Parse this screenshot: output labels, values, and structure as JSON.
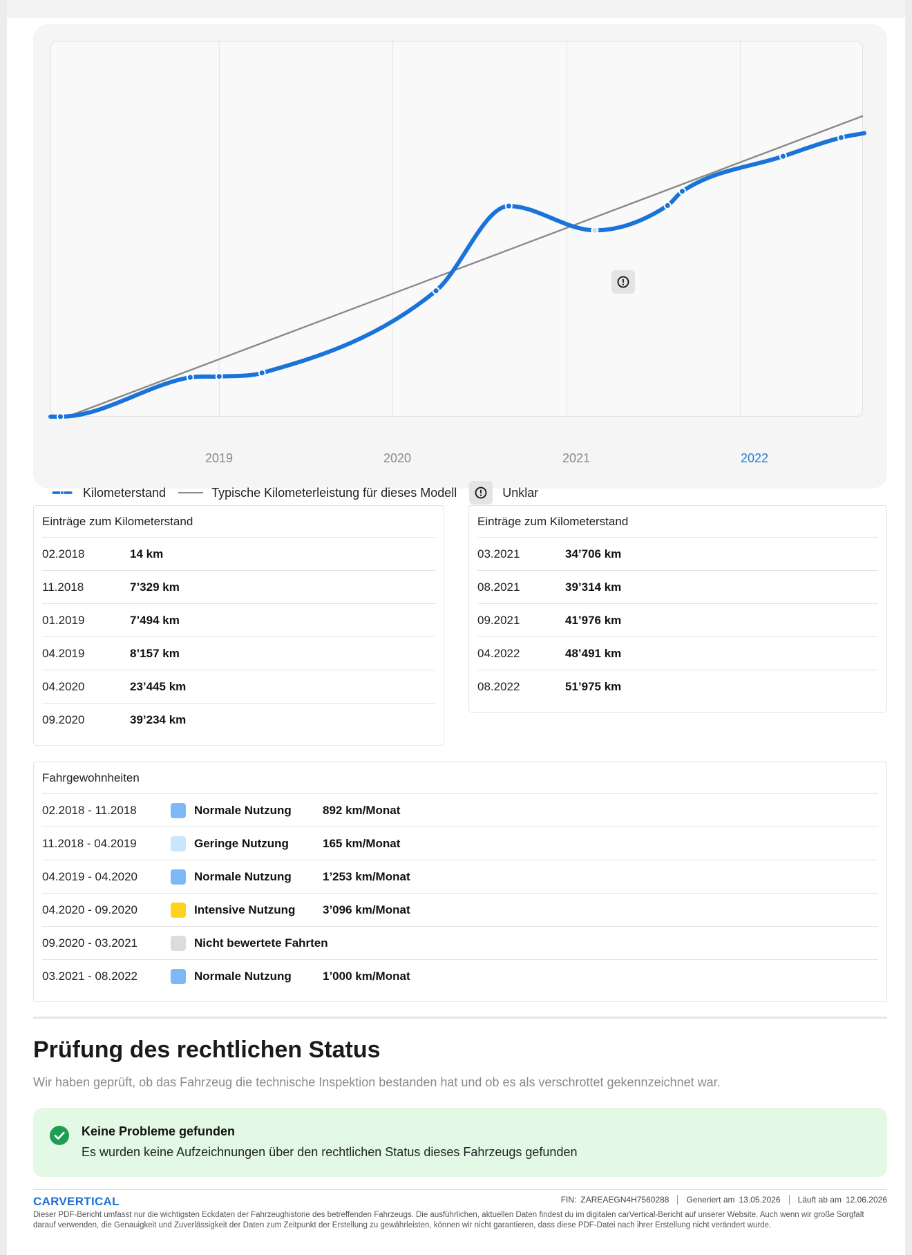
{
  "chart": {
    "x_ticks": [
      "2019",
      "2020",
      "2021",
      "2022"
    ],
    "active_tick": "2022",
    "legend": {
      "mileage": "Kilometerstand",
      "typical": "Typische Kilometerleistung für dieses Modell",
      "unclear": "Unklar"
    }
  },
  "chart_data": {
    "type": "line",
    "x_range": [
      "2018-01-25",
      "2022-09-30"
    ],
    "series": [
      {
        "name": "Kilometerstand",
        "color": "#1a73d9",
        "points": [
          {
            "date": "2018-02",
            "km": 14
          },
          {
            "date": "2018-11",
            "km": 7329
          },
          {
            "date": "2019-01",
            "km": 7494
          },
          {
            "date": "2019-04",
            "km": 8157
          },
          {
            "date": "2020-04",
            "km": 23445
          },
          {
            "date": "2020-09",
            "km": 39234
          },
          {
            "date": "2021-03",
            "km": 34706,
            "flag": "Unklar"
          },
          {
            "date": "2021-08",
            "km": 39314
          },
          {
            "date": "2021-09",
            "km": 41976
          },
          {
            "date": "2022-04",
            "km": 48491
          },
          {
            "date": "2022-08",
            "km": 51975
          }
        ]
      },
      {
        "name": "Typische Kilometerleistung für dieses Modell",
        "color": "#8a8a8a",
        "points": [
          {
            "date": "2018-02",
            "km": 0
          },
          {
            "date": "2022-09",
            "km": 56000
          }
        ]
      }
    ]
  },
  "mileage_tables": [
    {
      "title": "Einträge zum Kilometerstand",
      "rows": [
        {
          "date": "02.2018",
          "km": "14 km"
        },
        {
          "date": "11.2018",
          "km": "7’329 km"
        },
        {
          "date": "01.2019",
          "km": "7’494 km"
        },
        {
          "date": "04.2019",
          "km": "8’157 km"
        },
        {
          "date": "04.2020",
          "km": "23’445 km"
        },
        {
          "date": "09.2020",
          "km": "39’234 km"
        }
      ]
    },
    {
      "title": "Einträge zum Kilometerstand",
      "rows": [
        {
          "date": "03.2021",
          "km": "34’706 km"
        },
        {
          "date": "08.2021",
          "km": "39’314 km"
        },
        {
          "date": "09.2021",
          "km": "41’976 km"
        },
        {
          "date": "04.2022",
          "km": "48’491 km"
        },
        {
          "date": "08.2022",
          "km": "51’975 km"
        }
      ]
    }
  ],
  "habits": {
    "title": "Fahrgewohnheiten",
    "rows": [
      {
        "period": "02.2018 - 11.2018",
        "label": "Normale Nutzung",
        "rate": "892 km/Monat",
        "color": "#7fb8f7"
      },
      {
        "period": "11.2018 - 04.2019",
        "label": "Geringe Nutzung",
        "rate": "165 km/Monat",
        "color": "#c9e6fd"
      },
      {
        "period": "04.2019 - 04.2020",
        "label": "Normale Nutzung",
        "rate": "1’253 km/Monat",
        "color": "#7fb8f7"
      },
      {
        "period": "04.2020 - 09.2020",
        "label": "Intensive Nutzung",
        "rate": "3’096 km/Monat",
        "color": "#ffd21f"
      },
      {
        "period": "09.2020 - 03.2021",
        "label": "Nicht bewertete Fahrten",
        "rate": "",
        "color": "#dcdcdc"
      },
      {
        "period": "03.2021 - 08.2022",
        "label": "Normale Nutzung",
        "rate": "1’000 km/Monat",
        "color": "#7fb8f7"
      }
    ]
  },
  "legal": {
    "title": "Prüfung des rechtlichen Status",
    "description": "Wir haben geprüft, ob das Fahrzeug die technische Inspektion bestanden hat und ob es als verschrottet gekennzeichnet war.",
    "result_title": "Keine Probleme gefunden",
    "result_text": "Es wurden keine Aufzeichnungen über den rechtlichen Status dieses Fahrzeugs gefunden"
  },
  "footer": {
    "brand": "CARVERTICAL",
    "fin_label": "FIN:",
    "fin_value": "ZAREAEGN4H7560288",
    "generated_label": "Generiert am",
    "generated_value": "13.05.2026",
    "expires_label": "Läuft ab am",
    "expires_value": "12.06.2026",
    "disclaimer": "Dieser PDF-Bericht umfasst nur die wichtigsten Eckdaten der Fahrzeughistorie des betreffenden Fahrzeugs. Die ausführlichen, aktuellen Daten findest du im digitalen carVertical-Bericht auf unserer Website. Auch wenn wir große Sorgfalt darauf verwenden, die Genauigkeit und Zuverlässigkeit der Daten zum Zeitpunkt der Erstellung zu gewährleisten, können wir nicht garantieren, dass diese PDF-Datei nach ihrer Erstellung nicht verändert wurde."
  }
}
